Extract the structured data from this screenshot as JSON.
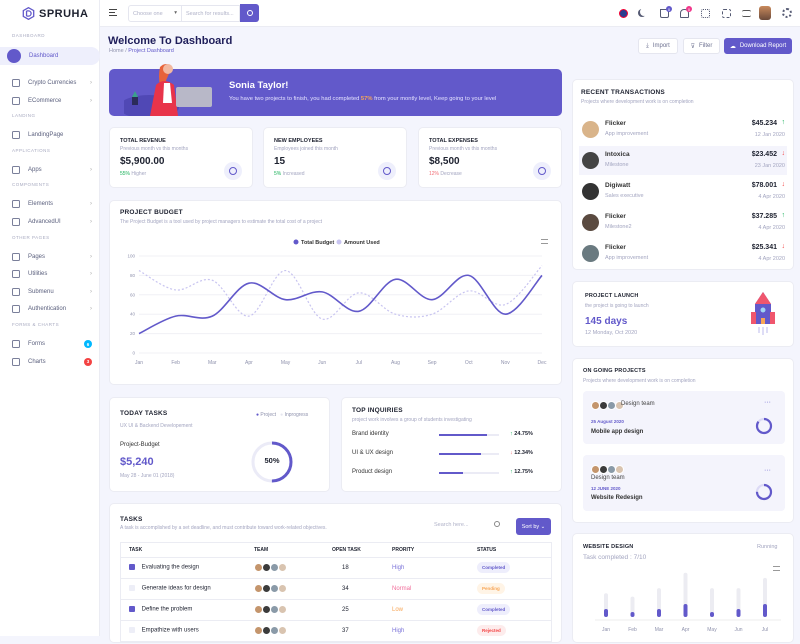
{
  "app": {
    "name": "SPRUHA"
  },
  "sidebar": {
    "sections": [
      {
        "label": "DASHBOARD",
        "items": [
          {
            "label": "Dashboard",
            "active": true
          }
        ]
      },
      {
        "label": "",
        "items": [
          {
            "label": "Crypto Currencies",
            "chevron": true
          },
          {
            "label": "ECommerce",
            "chevron": true
          }
        ]
      },
      {
        "label": "LANDING",
        "items": [
          {
            "label": "LandingPage"
          }
        ]
      },
      {
        "label": "APPLICATIONS",
        "items": [
          {
            "label": "Apps",
            "chevron": true
          }
        ]
      },
      {
        "label": "COMPONENTS",
        "items": [
          {
            "label": "Elements",
            "chevron": true
          },
          {
            "label": "AdvancedUI",
            "chevron": true
          }
        ]
      },
      {
        "label": "OTHER PAGES",
        "items": [
          {
            "label": "Pages",
            "chevron": true
          },
          {
            "label": "Utilities",
            "chevron": true
          },
          {
            "label": "Submenu",
            "chevron": true
          },
          {
            "label": "Authentication",
            "chevron": true
          }
        ]
      },
      {
        "label": "FORMS & CHARTS",
        "items": [
          {
            "label": "Forms",
            "badge": "6",
            "badge_color": "#01b8ff"
          },
          {
            "label": "Charts",
            "badge": "3",
            "badge_color": "#f34343"
          }
        ]
      }
    ]
  },
  "header": {
    "select_placeholder": "Choose one",
    "search_placeholder": "Search for results...",
    "cart_count": "0",
    "notif_count": "0"
  },
  "page": {
    "title": "Welcome To Dashboard",
    "breadcrumb": [
      "Home",
      "Project Dashboard"
    ],
    "import": "Import",
    "filter": "Filter",
    "download": "Download Report"
  },
  "banner": {
    "name": "Sonia Taylor!",
    "text_before": "You have two projects to finish, you had completed ",
    "percent": "57%",
    "text_after": " from your montly level, Keep going to your level"
  },
  "stats": [
    {
      "title": "TOTAL REVENUE",
      "sub": "Previous month vs this months",
      "value": "$5,900.00",
      "change": "55%",
      "change_label": " Higher",
      "change_color": "#19b159",
      "icon": "invoice-icon"
    },
    {
      "title": "NEW EMPLOYEES",
      "sub": "Employees joined this month",
      "value": "15",
      "change": "5%",
      "change_label": " Increased",
      "change_color": "#19b159",
      "icon": "user-icon"
    },
    {
      "title": "TOTAL EXPENSES",
      "sub": "Previous month vs this months",
      "value": "$8,500",
      "change": "12%",
      "change_label": " Decrease",
      "change_color": "#f16d75",
      "icon": "dollar-icon"
    }
  ],
  "budget": {
    "title": "PROJECT BUDGET",
    "sub": "The Project Budget is a tool used by project managers to estimate the total cost of a project"
  },
  "chart_data": {
    "type": "line",
    "categories": [
      "Jan",
      "Feb",
      "Mar",
      "Apr",
      "May",
      "Jun",
      "Jul",
      "Aug",
      "Sep",
      "Oct",
      "Nov",
      "Dec"
    ],
    "series": [
      {
        "name": "Total Budget",
        "values": [
          20,
          38,
          38,
          72,
          55,
          63,
          43,
          76,
          55,
          80,
          40,
          80
        ],
        "color": "#6259ca",
        "dashed": false
      },
      {
        "name": "Amount Used",
        "values": [
          85,
          65,
          75,
          38,
          85,
          35,
          62,
          40,
          40,
          64,
          50,
          90
        ],
        "color": "#c8c4f0",
        "dashed": true
      }
    ],
    "yticks": [
      0,
      20,
      40,
      60,
      80,
      100
    ],
    "ylim": [
      0,
      100
    ],
    "grid": true,
    "legend": "top-center"
  },
  "today": {
    "title": "TODAY TASKS",
    "sub": "UX UI & Backend Developement",
    "legend": [
      "Project",
      "Inprogress"
    ],
    "label": "Project-Budget",
    "value": "$5,240",
    "dates": "May 28 - June 01 (2018)",
    "progress": "50%",
    "progress_value": 50
  },
  "inquiries": {
    "title": "TOP INQUIRIES",
    "sub": "project work involves a group of students investigating",
    "items": [
      {
        "label": "Brand identity",
        "fill": 80,
        "change": "24.75%",
        "dir": "up"
      },
      {
        "label": "UI & UX design",
        "fill": 70,
        "change": "12.34%",
        "dir": "down"
      },
      {
        "label": "Product design",
        "fill": 40,
        "change": "12.75%",
        "dir": "up"
      }
    ]
  },
  "tasks": {
    "title": "TASKS",
    "sub": "A task is accomplished by a set deadline, and must contribute toward work-related objectives.",
    "search_placeholder": "Search here...",
    "sort": "Sort by",
    "columns": [
      "TASK",
      "TEAM",
      "OPEN TASK",
      "PRORITY",
      "STATUS"
    ],
    "rows": [
      {
        "checked": true,
        "task": "Evaluating the design",
        "open": "18",
        "priority": "High",
        "priority_color": "#7a72d8",
        "status": "Completed",
        "status_color": "#6259ca",
        "status_bg": "#eeeefc"
      },
      {
        "checked": false,
        "task": "Generate ideas for design",
        "open": "34",
        "priority": "Normal",
        "priority_color": "#f16d9a",
        "status": "Pending",
        "status_color": "#f7a556",
        "status_bg": "#fff4e6"
      },
      {
        "checked": true,
        "task": "Define the problem",
        "open": "25",
        "priority": "Low",
        "priority_color": "#f7a556",
        "status": "Completed",
        "status_color": "#6259ca",
        "status_bg": "#eeeefc"
      },
      {
        "checked": false,
        "task": "Empathize with users",
        "open": "37",
        "priority": "High",
        "priority_color": "#7a72d8",
        "status": "Rejected",
        "status_color": "#f34343",
        "status_bg": "#fdecec"
      }
    ]
  },
  "transactions": {
    "title": "RECENT TRANSACTIONS",
    "sub": "Projects where development work is on completion",
    "items": [
      {
        "name": "Flicker",
        "role": "App improvement",
        "amount": "$45.234",
        "date": "12 Jan 2020",
        "dir": "up"
      },
      {
        "name": "Intoxica",
        "role": "Milestone",
        "amount": "$23.452",
        "date": "23 Jan 2020",
        "dir": "down"
      },
      {
        "name": "Digiwatt",
        "role": "Sales executive",
        "amount": "$78.001",
        "date": "4 Apr 2020",
        "dir": "down"
      },
      {
        "name": "Flicker",
        "role": "Milestone2",
        "amount": "$37.285",
        "date": "4 Apr 2020",
        "dir": "up"
      },
      {
        "name": "Flicker",
        "role": "App improvement",
        "amount": "$25.341",
        "date": "4 Apr 2020",
        "dir": "down"
      }
    ]
  },
  "launch": {
    "title": "PROJECT LAUNCH",
    "sub": "the project is going to launch",
    "days": "145 days",
    "date": "12 Monday, Oct 2020"
  },
  "ongoing": {
    "title": "ON GOING PROJECTS",
    "sub": "Projects where development work is on completion",
    "items": [
      {
        "team": "Design team",
        "date": "25 August 2020",
        "name": "Mobile app design",
        "progress": 85
      },
      {
        "team": "Design team",
        "date": "12 JUNE 2020",
        "name": "Website Redesign",
        "progress": 75
      }
    ]
  },
  "website": {
    "title": "WEBSITE DESIGN",
    "status": "Running",
    "sub": "Task completed : 7/10",
    "bars": {
      "categories": [
        "Jan",
        "Feb",
        "Mar",
        "Apr",
        "May",
        "Jun",
        "Jul"
      ],
      "total": [
        14,
        12,
        17,
        26,
        17,
        17,
        23
      ],
      "done": [
        8,
        5,
        8,
        13,
        5,
        8,
        13
      ]
    }
  }
}
